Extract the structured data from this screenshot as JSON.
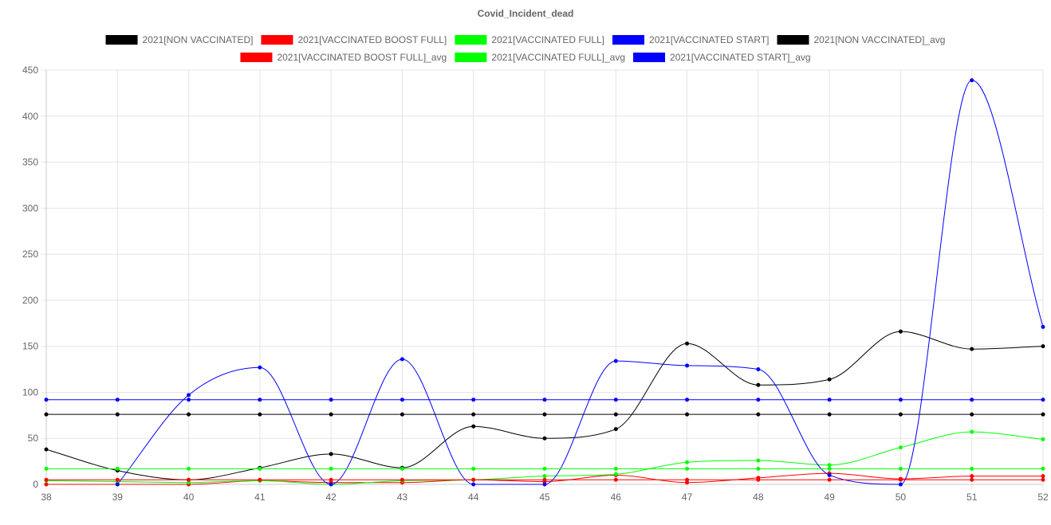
{
  "chart_data": {
    "type": "line",
    "title": "Covid_Incident_dead",
    "xlabel": "",
    "ylabel": "",
    "x": [
      "38",
      "39",
      "40",
      "41",
      "42",
      "43",
      "44",
      "45",
      "46",
      "47",
      "48",
      "49",
      "50",
      "51",
      "52"
    ],
    "ylim": [
      0,
      450
    ],
    "yticks": [
      0,
      50,
      100,
      150,
      200,
      250,
      300,
      350,
      400,
      450
    ],
    "grid": true,
    "legend_position": "top",
    "series": [
      {
        "name": "2021[NON VACCINATED]",
        "color": "#000000",
        "values": [
          38,
          15,
          5,
          18,
          33,
          18,
          63,
          50,
          60,
          153,
          108,
          114,
          166,
          147,
          150
        ]
      },
      {
        "name": "2021[VACCINATED BOOST FULL]",
        "color": "#ff0000",
        "values": [
          0,
          0,
          0,
          4,
          2,
          2,
          5,
          3,
          10,
          2,
          7,
          12,
          6,
          9,
          9
        ]
      },
      {
        "name": "2021[VACCINATED FULL]",
        "color": "#00ff00",
        "values": [
          4,
          3,
          2,
          4,
          0,
          4,
          5,
          9,
          11,
          24,
          26,
          21,
          40,
          57,
          49
        ]
      },
      {
        "name": "2021[VACCINATED START]",
        "color": "#0000ff",
        "values": [
          null,
          0,
          97,
          127,
          0,
          136,
          0,
          0,
          134,
          129,
          125,
          10,
          0,
          439,
          171
        ]
      },
      {
        "name": "2021[NON VACCINATED]_avg",
        "color": "#000000",
        "values": [
          76,
          76,
          76,
          76,
          76,
          76,
          76,
          76,
          76,
          76,
          76,
          76,
          76,
          76,
          76
        ]
      },
      {
        "name": "2021[VACCINATED BOOST FULL]_avg",
        "color": "#ff0000",
        "values": [
          5,
          5,
          5,
          5,
          5,
          5,
          5,
          5,
          5,
          5,
          5,
          5,
          5,
          5,
          5
        ]
      },
      {
        "name": "2021[VACCINATED FULL]_avg",
        "color": "#00ff00",
        "values": [
          17,
          17,
          17,
          17,
          17,
          17,
          17,
          17,
          17,
          17,
          17,
          17,
          17,
          17,
          17
        ]
      },
      {
        "name": "2021[VACCINATED START]_avg",
        "color": "#0000ff",
        "values": [
          92,
          92,
          92,
          92,
          92,
          92,
          92,
          92,
          92,
          92,
          92,
          92,
          92,
          92,
          92
        ]
      }
    ]
  }
}
